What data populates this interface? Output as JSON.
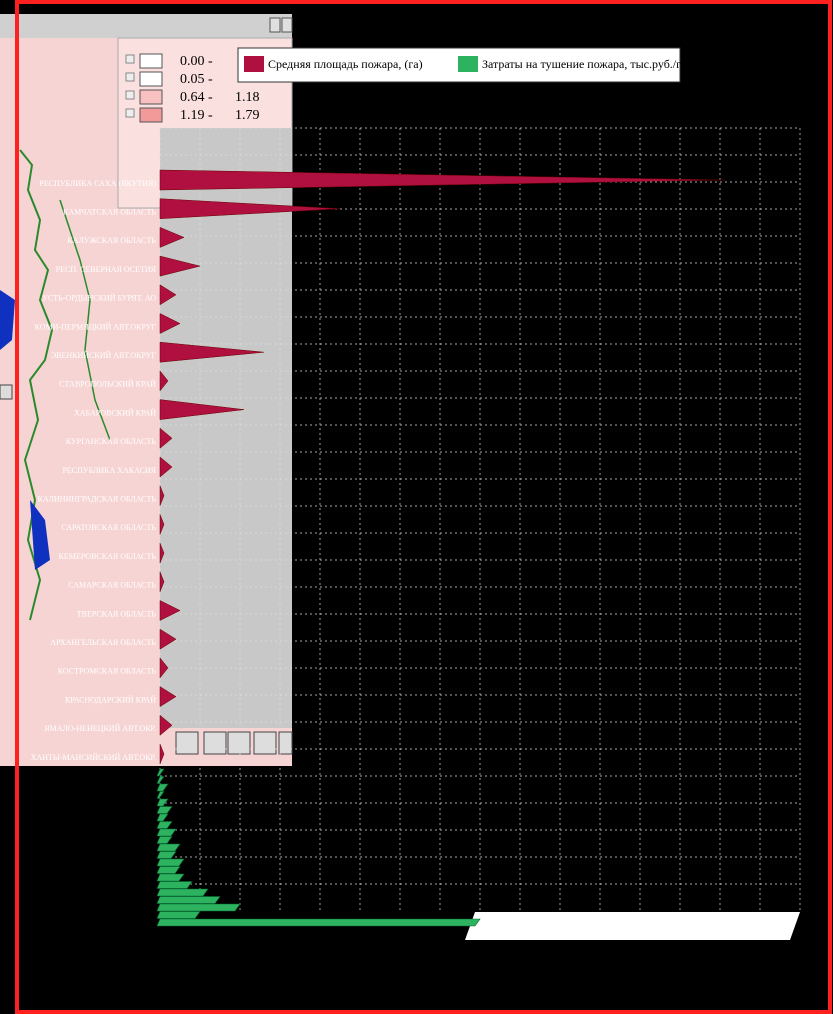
{
  "window": {
    "range_legend": [
      [
        "0.00 -"
      ],
      [
        "0.05 -"
      ],
      [
        "0.64 -",
        "1.18"
      ],
      [
        "1.19 -",
        "1.79"
      ]
    ]
  },
  "chart_data": {
    "type": "area",
    "categories": [
      "РЕСПУБЛИКА САХА (ЯКУТИЯ)",
      "КАМЧАТСКАЯ ОБЛАСТЬ",
      "КАЛУЖСКАЯ ОБЛАСТЬ",
      "РЕСП. СЕВЕРНАЯ ОСЕТИЯ",
      "УСТЬ-ОРДЫНСКИЙ БУРЯТ. АО",
      "КОМИ-ПЕРМЯЦКИЙ АВТ.ОКРУГ",
      "ЭВЕНКИЙСКИЙ АВТ.ОКРУГ",
      "СТАВРОПОЛЬСКИЙ КРАЙ",
      "ХАБАРОВСКИЙ КРАЙ",
      "КУРГАНСКАЯ ОБЛАСТЬ",
      "РЕСПУБЛИКА ХАКАСИЯ",
      "КАЛИНИНГРАДСКАЯ ОБЛАСТЬ",
      "САРАТОВСКАЯ ОБЛАСТЬ",
      "КЕМЕРОВСКАЯ ОБЛАСТЬ",
      "САМАРСКАЯ ОБЛАСТЬ",
      "ТВЕРСКАЯ ОБЛАСТЬ",
      "АРХАНГЕЛЬСКАЯ ОБЛАСТЬ",
      "КОСТРОМСКАЯ ОБЛАСТЬ",
      "КРАСНОДАРСКИЙ КРАЙ",
      "ЯМАЛО-НЕНЕЦКИЙ АВТ.ОКР.",
      "ХАНТЫ-МАНСИЙСКИЙ АВТ.ОКР."
    ],
    "series": [
      {
        "name": "Средняя площадь пожара, (га)",
        "color": "#b0103f",
        "values": [
          14.1,
          4.5,
          0.6,
          1.0,
          0.4,
          0.5,
          2.6,
          0.2,
          2.1,
          0.3,
          0.3,
          0.1,
          0.1,
          0.1,
          0.1,
          0.5,
          0.4,
          0.2,
          0.4,
          0.3,
          0.1
        ]
      },
      {
        "name": "Затраты на тушение пожара, тыс.руб./га",
        "color": "#2db35f",
        "values": [
          0.1,
          0.1,
          0.2,
          0.1,
          0.2,
          0.3,
          0.2,
          0.3,
          0.4,
          0.3,
          0.5,
          0.4,
          0.6,
          0.5,
          0.6,
          0.8,
          1.2,
          1.5,
          2.0,
          1.0,
          8.0
        ]
      }
    ],
    "xlim": [
      0,
      16
    ],
    "xticks": [
      0,
      1,
      2,
      3,
      4,
      5,
      6,
      7,
      8,
      9,
      10,
      11,
      12,
      13,
      14,
      15,
      16
    ],
    "grid": true
  }
}
